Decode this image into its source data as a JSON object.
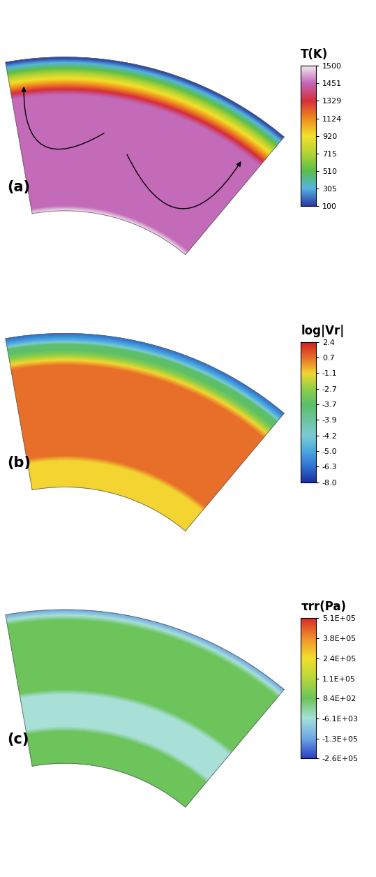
{
  "chart_data": [
    {
      "type": "contour",
      "panel_label": "(a)",
      "circulation_arrows": true,
      "colorbar": {
        "title": "T(K)",
        "ticks": [
          100,
          305,
          510,
          715,
          920,
          1124,
          1329,
          1451,
          1500
        ],
        "colors": [
          "#2a3aa8",
          "#55b4e0",
          "#5cbf4a",
          "#b5d334",
          "#f3e12b",
          "#f08a1e",
          "#d62f3c",
          "#c266b6",
          "#f4e6f2"
        ]
      },
      "radial_profile": [
        100,
        305,
        510,
        715,
        920,
        1124,
        1329,
        1451,
        1451,
        1451,
        1451,
        1451,
        1451,
        1451,
        1451,
        1451,
        1451,
        1451,
        1451,
        1451,
        1451,
        1451,
        1451,
        1451,
        1451,
        1451,
        1451,
        1451,
        1451,
        1500
      ]
    },
    {
      "type": "contour",
      "panel_label": "(b)",
      "circulation_arrows": false,
      "colorbar": {
        "title": "log|Vr|",
        "ticks": [
          -8.0,
          -6.3,
          -5.0,
          -4.2,
          -3.9,
          -3.7,
          -2.7,
          -1.1,
          0.7,
          2.4
        ],
        "colors": [
          "#1a2fa0",
          "#3070d0",
          "#4aa8e0",
          "#7ccbd4",
          "#6fc4a0",
          "#5cbf6a",
          "#8dcf4a",
          "#f3d630",
          "#e8702a",
          "#d42020"
        ]
      },
      "radial_profile": [
        -6.3,
        -5.0,
        -3.7,
        -3.7,
        -2.7,
        -1.1,
        0.7,
        0.7,
        0.7,
        0.7,
        0.7,
        0.7,
        0.7,
        0.7,
        0.7,
        0.7,
        0.7,
        0.7,
        0.7,
        0.7,
        0.7,
        0.7,
        0.7,
        0.7,
        -1.1,
        -1.1,
        -1.1,
        -1.1,
        -1.1,
        -1.1
      ]
    },
    {
      "type": "contour",
      "panel_label": "(c)",
      "circulation_arrows": false,
      "colorbar": {
        "title": "τrr(Pa)",
        "ticks": [
          {
            "value": -260000,
            "label": "-2.6E+05"
          },
          {
            "value": -130000,
            "label": "-1.3E+05"
          },
          {
            "value": -6100,
            "label": "-6.1E+03"
          },
          {
            "value": 840,
            "label": "8.4E+02"
          },
          {
            "value": 110000,
            "label": "1.1E+05"
          },
          {
            "value": 240000,
            "label": "2.4E+05"
          },
          {
            "value": 380000,
            "label": "3.8E+05"
          },
          {
            "value": 510000,
            "label": "5.1E+05"
          }
        ],
        "colors": [
          "#2a40c0",
          "#6fa8e8",
          "#a8e0d8",
          "#6cc45a",
          "#b8d83a",
          "#f2df2e",
          "#f0902a",
          "#d82a2a"
        ]
      },
      "radial_profile": [
        -130000,
        -6100,
        840,
        840,
        840,
        840,
        840,
        840,
        840,
        840,
        840,
        840,
        840,
        840,
        840,
        840,
        -6100,
        -6100,
        -6100,
        -6100,
        -6100,
        -6100,
        -6100,
        840,
        840,
        840,
        840,
        840,
        840,
        840
      ]
    }
  ]
}
